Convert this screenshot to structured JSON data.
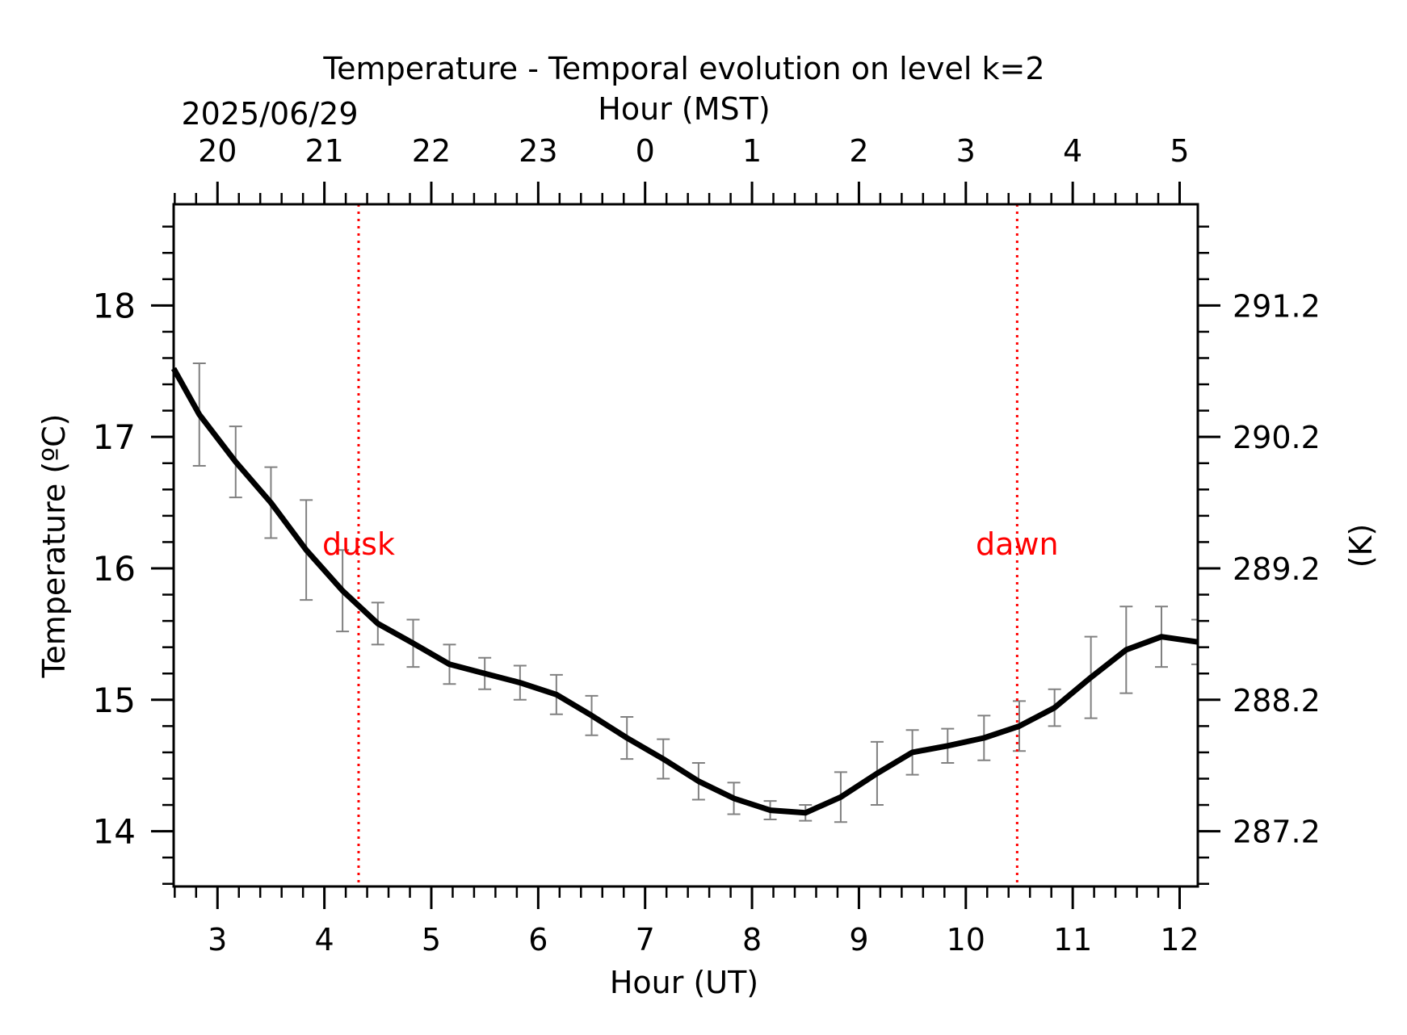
{
  "chart_data": {
    "type": "line",
    "title": "Temperature - Temporal evolution on level k=2",
    "date_label": "2025/06/29",
    "xlabel": "Hour (UT)",
    "x2label": "Hour (MST)",
    "ylabel": "Temperature (ºC)",
    "y2label": "(K)",
    "xlim": [
      2.59,
      12.17
    ],
    "ylim": [
      13.58,
      18.77
    ],
    "xticks": [
      3,
      4,
      5,
      6,
      7,
      8,
      9,
      10,
      11,
      12
    ],
    "xtick_labels": [
      "3",
      "4",
      "5",
      "6",
      "7",
      "8",
      "9",
      "10",
      "11",
      "12"
    ],
    "x2ticks": [
      3,
      4,
      5,
      6,
      7,
      8,
      9,
      10,
      11,
      12
    ],
    "x2tick_labels": [
      "20",
      "21",
      "22",
      "23",
      "0",
      "1",
      "2",
      "3",
      "4",
      "5"
    ],
    "yticks": [
      14,
      15,
      16,
      17,
      18
    ],
    "ytick_labels": [
      "14",
      "15",
      "16",
      "17",
      "18"
    ],
    "y2ticks": [
      14,
      15,
      16,
      17,
      18
    ],
    "y2tick_labels": [
      "287.2",
      "288.2",
      "289.2",
      "290.2",
      "291.2"
    ],
    "grid": false,
    "colors": {
      "line": "#000000",
      "errorbar": "#808080",
      "event": "#ff0000"
    },
    "series": [
      {
        "x": [
          2.59,
          2.83,
          3.17,
          3.5,
          3.83,
          4.17,
          4.5,
          4.83,
          5.17,
          5.5,
          5.83,
          6.17,
          6.5,
          6.83,
          7.17,
          7.5,
          7.83,
          8.17,
          8.5,
          8.83,
          9.17,
          9.5,
          9.83,
          10.17,
          10.5,
          10.83,
          11.17,
          11.5,
          11.83,
          12.17
        ],
        "y": [
          17.52,
          17.17,
          16.81,
          16.5,
          16.14,
          15.83,
          15.58,
          15.43,
          15.27,
          15.2,
          15.13,
          15.04,
          14.88,
          14.71,
          14.55,
          14.38,
          14.25,
          14.16,
          14.14,
          14.26,
          14.44,
          14.6,
          14.65,
          14.71,
          14.8,
          14.94,
          15.17,
          15.38,
          15.48,
          15.44
        ],
        "error": [
          null,
          0.39,
          0.27,
          0.27,
          0.38,
          0.31,
          0.16,
          0.18,
          0.15,
          0.12,
          0.13,
          0.15,
          0.15,
          0.16,
          0.15,
          0.14,
          0.12,
          0.07,
          0.06,
          0.19,
          0.24,
          0.17,
          0.13,
          0.17,
          0.19,
          0.14,
          0.31,
          0.33,
          0.23,
          0.17
        ]
      }
    ],
    "events": [
      {
        "label": "dusk",
        "x": 4.32
      },
      {
        "label": "dawn",
        "x": 10.48
      }
    ]
  }
}
